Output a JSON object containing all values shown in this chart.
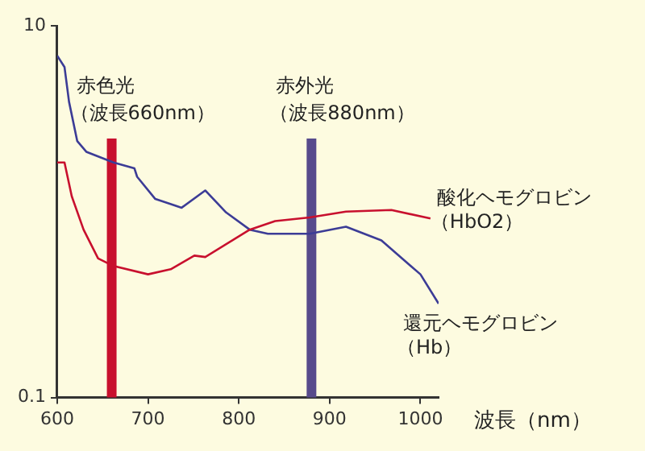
{
  "chart_data": {
    "type": "line",
    "xlabel": "波長（nm）",
    "log": "y",
    "grid": false,
    "legend": false,
    "marker": "none",
    "line_style": "solid",
    "xlim": [
      600,
      1020
    ],
    "xticks": [
      600,
      700,
      800,
      900,
      1000
    ],
    "ylim": [
      0.1,
      10
    ],
    "yticks": [
      0.1,
      10
    ],
    "series": [
      {
        "name": "酸化ヘモグロビン（HbO2）",
        "color": "#c8102e",
        "x": [
          600,
          608,
          616,
          629,
          645,
          662,
          700,
          725,
          751,
          763,
          812,
          840,
          878,
          918,
          968,
          1011
        ],
        "values": [
          1.84,
          1.84,
          1.21,
          0.8,
          0.56,
          0.51,
          0.46,
          0.49,
          0.58,
          0.57,
          0.8,
          0.89,
          0.93,
          1.0,
          1.02,
          0.92
        ]
      },
      {
        "name": "還元ヘモグロビン（Hb）",
        "color": "#3c3c96",
        "x": [
          600,
          608,
          613,
          622,
          632,
          662,
          685,
          688,
          708,
          737,
          763,
          786,
          812,
          832,
          878,
          918,
          957,
          1000,
          1020
        ],
        "values": [
          6.9,
          6.0,
          3.9,
          2.4,
          2.1,
          1.84,
          1.71,
          1.54,
          1.17,
          1.05,
          1.3,
          0.99,
          0.8,
          0.76,
          0.76,
          0.83,
          0.7,
          0.46,
          0.32
        ]
      }
    ],
    "ref_lines": [
      {
        "axis": "x",
        "value": 660,
        "label": "赤色光（波長660nm）",
        "color": "#c8102e"
      },
      {
        "axis": "x",
        "value": 880,
        "label": "赤外光（波長880nm）",
        "color": "#574a8c"
      }
    ]
  }
}
